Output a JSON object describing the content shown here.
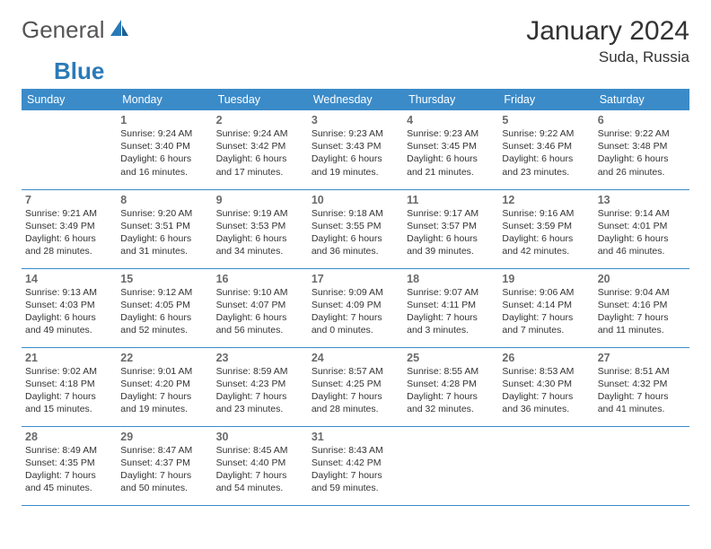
{
  "brand": {
    "part1": "General",
    "part2": "Blue"
  },
  "title": "January 2024",
  "location": "Suda, Russia",
  "colors": {
    "header_bg": "#3b8bc9",
    "header_fg": "#ffffff",
    "rule": "#3b8bc9",
    "daynum": "#6a6a6a",
    "text": "#333333"
  },
  "weekdays": [
    "Sunday",
    "Monday",
    "Tuesday",
    "Wednesday",
    "Thursday",
    "Friday",
    "Saturday"
  ],
  "weeks": [
    [
      null,
      {
        "n": "1",
        "sr": "9:24 AM",
        "ss": "3:40 PM",
        "dl": "6 hours and 16 minutes."
      },
      {
        "n": "2",
        "sr": "9:24 AM",
        "ss": "3:42 PM",
        "dl": "6 hours and 17 minutes."
      },
      {
        "n": "3",
        "sr": "9:23 AM",
        "ss": "3:43 PM",
        "dl": "6 hours and 19 minutes."
      },
      {
        "n": "4",
        "sr": "9:23 AM",
        "ss": "3:45 PM",
        "dl": "6 hours and 21 minutes."
      },
      {
        "n": "5",
        "sr": "9:22 AM",
        "ss": "3:46 PM",
        "dl": "6 hours and 23 minutes."
      },
      {
        "n": "6",
        "sr": "9:22 AM",
        "ss": "3:48 PM",
        "dl": "6 hours and 26 minutes."
      }
    ],
    [
      {
        "n": "7",
        "sr": "9:21 AM",
        "ss": "3:49 PM",
        "dl": "6 hours and 28 minutes."
      },
      {
        "n": "8",
        "sr": "9:20 AM",
        "ss": "3:51 PM",
        "dl": "6 hours and 31 minutes."
      },
      {
        "n": "9",
        "sr": "9:19 AM",
        "ss": "3:53 PM",
        "dl": "6 hours and 34 minutes."
      },
      {
        "n": "10",
        "sr": "9:18 AM",
        "ss": "3:55 PM",
        "dl": "6 hours and 36 minutes."
      },
      {
        "n": "11",
        "sr": "9:17 AM",
        "ss": "3:57 PM",
        "dl": "6 hours and 39 minutes."
      },
      {
        "n": "12",
        "sr": "9:16 AM",
        "ss": "3:59 PM",
        "dl": "6 hours and 42 minutes."
      },
      {
        "n": "13",
        "sr": "9:14 AM",
        "ss": "4:01 PM",
        "dl": "6 hours and 46 minutes."
      }
    ],
    [
      {
        "n": "14",
        "sr": "9:13 AM",
        "ss": "4:03 PM",
        "dl": "6 hours and 49 minutes."
      },
      {
        "n": "15",
        "sr": "9:12 AM",
        "ss": "4:05 PM",
        "dl": "6 hours and 52 minutes."
      },
      {
        "n": "16",
        "sr": "9:10 AM",
        "ss": "4:07 PM",
        "dl": "6 hours and 56 minutes."
      },
      {
        "n": "17",
        "sr": "9:09 AM",
        "ss": "4:09 PM",
        "dl": "7 hours and 0 minutes."
      },
      {
        "n": "18",
        "sr": "9:07 AM",
        "ss": "4:11 PM",
        "dl": "7 hours and 3 minutes."
      },
      {
        "n": "19",
        "sr": "9:06 AM",
        "ss": "4:14 PM",
        "dl": "7 hours and 7 minutes."
      },
      {
        "n": "20",
        "sr": "9:04 AM",
        "ss": "4:16 PM",
        "dl": "7 hours and 11 minutes."
      }
    ],
    [
      {
        "n": "21",
        "sr": "9:02 AM",
        "ss": "4:18 PM",
        "dl": "7 hours and 15 minutes."
      },
      {
        "n": "22",
        "sr": "9:01 AM",
        "ss": "4:20 PM",
        "dl": "7 hours and 19 minutes."
      },
      {
        "n": "23",
        "sr": "8:59 AM",
        "ss": "4:23 PM",
        "dl": "7 hours and 23 minutes."
      },
      {
        "n": "24",
        "sr": "8:57 AM",
        "ss": "4:25 PM",
        "dl": "7 hours and 28 minutes."
      },
      {
        "n": "25",
        "sr": "8:55 AM",
        "ss": "4:28 PM",
        "dl": "7 hours and 32 minutes."
      },
      {
        "n": "26",
        "sr": "8:53 AM",
        "ss": "4:30 PM",
        "dl": "7 hours and 36 minutes."
      },
      {
        "n": "27",
        "sr": "8:51 AM",
        "ss": "4:32 PM",
        "dl": "7 hours and 41 minutes."
      }
    ],
    [
      {
        "n": "28",
        "sr": "8:49 AM",
        "ss": "4:35 PM",
        "dl": "7 hours and 45 minutes."
      },
      {
        "n": "29",
        "sr": "8:47 AM",
        "ss": "4:37 PM",
        "dl": "7 hours and 50 minutes."
      },
      {
        "n": "30",
        "sr": "8:45 AM",
        "ss": "4:40 PM",
        "dl": "7 hours and 54 minutes."
      },
      {
        "n": "31",
        "sr": "8:43 AM",
        "ss": "4:42 PM",
        "dl": "7 hours and 59 minutes."
      },
      null,
      null,
      null
    ]
  ],
  "labels": {
    "sunrise": "Sunrise:",
    "sunset": "Sunset:",
    "daylight": "Daylight:"
  }
}
